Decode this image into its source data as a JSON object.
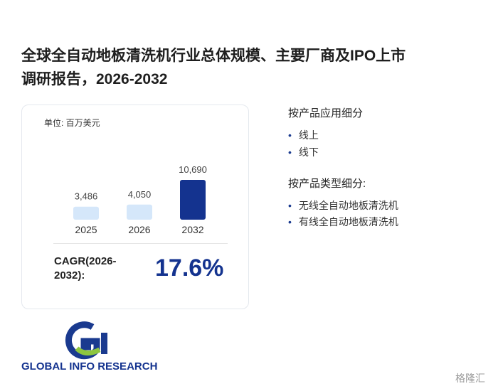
{
  "header": {
    "title_line1": "全球全自动地板清洗机行业总体规模、主要厂商及IPO上市",
    "title_line2": "调研报告，2026-2032"
  },
  "card": {
    "unit": "单位: 百万美元",
    "cagr_label_line1": "CAGR(2026-",
    "cagr_label_line2": "2032):",
    "cagr_value": "17.6%"
  },
  "chart_data": {
    "type": "bar",
    "categories": [
      "2025",
      "2026",
      "2032"
    ],
    "values": [
      3486,
      4050,
      10690
    ],
    "value_labels": [
      "3,486",
      "4,050",
      "10,690"
    ],
    "colors": [
      "#d5e7fa",
      "#d5e7fa",
      "#14338f"
    ]
  },
  "segments": [
    {
      "heading": "按产品应用细分",
      "items": [
        "线上",
        "线下"
      ]
    },
    {
      "heading": "按产品类型细分:",
      "items": [
        "无线全自动地板清洗机",
        "有线全自动地板清洗机"
      ]
    }
  ],
  "logo": {
    "text": "GLOBAL INFO RESEARCH"
  },
  "footer": {
    "watermark": "格隆汇"
  }
}
